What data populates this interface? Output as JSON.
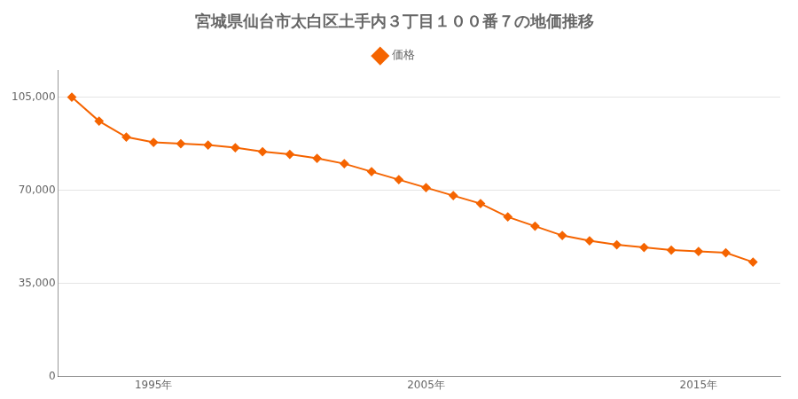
{
  "chart_data": {
    "type": "line",
    "title": "宮城県仙台市太白区土手内３丁目１００番７の地価推移",
    "x": [
      1992,
      1993,
      1994,
      1995,
      1996,
      1997,
      1998,
      1999,
      2000,
      2001,
      2002,
      2003,
      2004,
      2005,
      2006,
      2007,
      2008,
      2009,
      2010,
      2011,
      2012,
      2013,
      2014,
      2015,
      2016,
      2017
    ],
    "series": [
      {
        "name": "価格",
        "color": "#f56400",
        "marker": "diamond",
        "line_style": "solid",
        "values": [
          105000,
          96000,
          90000,
          88000,
          87500,
          87000,
          86000,
          84500,
          83500,
          82000,
          80000,
          77000,
          74000,
          71000,
          68000,
          65000,
          60000,
          56500,
          53000,
          51000,
          49500,
          48500,
          47500,
          47000,
          46500,
          43000
        ]
      }
    ],
    "xlim": [
      1991.5,
      2018
    ],
    "xticks": [
      {
        "value": 1995,
        "label": "1995年"
      },
      {
        "value": 2005,
        "label": "2005年"
      },
      {
        "value": 2015,
        "label": "2015年"
      }
    ],
    "ylim": [
      0,
      115000
    ],
    "yticks": [
      0,
      {
        "value": 35000,
        "label": "35,000"
      },
      {
        "value": 70000,
        "label": "70,000"
      },
      {
        "value": 105000,
        "label": "105,000"
      }
    ],
    "grid": "y",
    "legend": "top"
  }
}
